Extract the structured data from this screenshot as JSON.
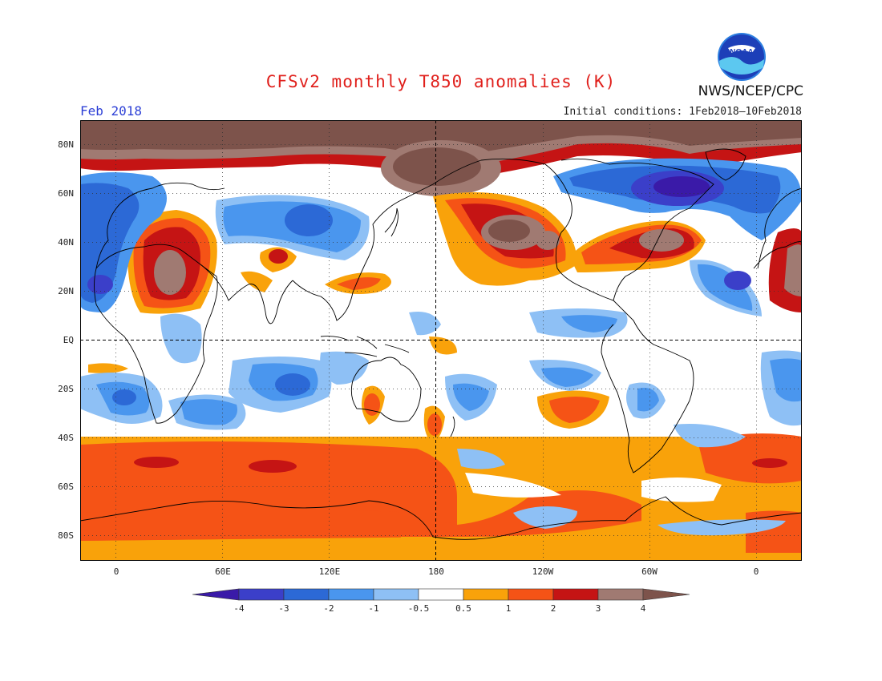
{
  "header": {
    "title": "CFSv2 monthly T850 anomalies (K)",
    "month": "Feb 2018",
    "initial_conditions": "Initial conditions: 1Feb2018–10Feb2018",
    "agency": "NWS/NCEP/CPC",
    "logo_text": "NOAA"
  },
  "axes": {
    "lat_labels": [
      "80N",
      "60N",
      "40N",
      "20N",
      "EQ",
      "20S",
      "40S",
      "60S",
      "80S"
    ],
    "lon_labels": [
      "0",
      "60E",
      "120E",
      "180",
      "120W",
      "60W",
      "0"
    ]
  },
  "colorbar": {
    "labels": [
      "-4",
      "-3",
      "-2",
      "-1",
      "-0.5",
      "0.5",
      "1",
      "2",
      "3",
      "4"
    ],
    "colors": [
      "#3a1aa8",
      "#3b3fc9",
      "#2c69d6",
      "#4a96ee",
      "#8ec0f5",
      "#ffffff",
      "#f9a20a",
      "#f55316",
      "#c51414",
      "#a07a72",
      "#7d534b"
    ]
  },
  "palette": {
    "title_red": "#e0201c",
    "month_blue": "#2c3fd6"
  }
}
